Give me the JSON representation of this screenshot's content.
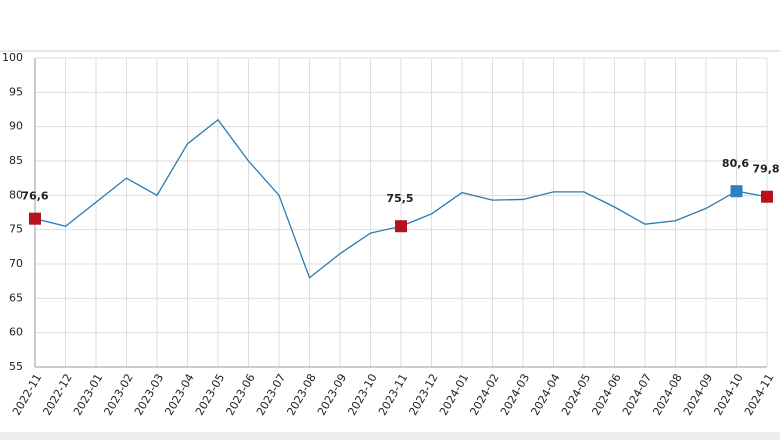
{
  "chart_data": {
    "type": "line",
    "categories": [
      "2022-11",
      "2022-12",
      "2023-01",
      "2023-02",
      "2023-03",
      "2023-04",
      "2023-05",
      "2023-06",
      "2023-07",
      "2023-08",
      "2023-09",
      "2023-10",
      "2023-11",
      "2023-12",
      "2024-01",
      "2024-02",
      "2024-03",
      "2024-04",
      "2024-05",
      "2024-06",
      "2024-07",
      "2024-08",
      "2024-09",
      "2024-10",
      "2024-11"
    ],
    "values": [
      76.6,
      75.5,
      79,
      82.5,
      80,
      87.5,
      91,
      85,
      80,
      68,
      71.5,
      74.5,
      75.5,
      77.3,
      80.4,
      79.3,
      79.4,
      80.5,
      80.5,
      78.3,
      75.8,
      76.3,
      78.1,
      80.6,
      79.8
    ],
    "value_labels": [
      "76,6",
      null,
      null,
      null,
      null,
      null,
      null,
      null,
      null,
      null,
      null,
      null,
      "75,5",
      null,
      null,
      null,
      null,
      null,
      null,
      null,
      null,
      null,
      null,
      "80,6",
      "79,8"
    ],
    "marker_colors": [
      "#b5121b",
      null,
      null,
      null,
      null,
      null,
      null,
      null,
      null,
      null,
      null,
      null,
      "#b5121b",
      null,
      null,
      null,
      null,
      null,
      null,
      null,
      null,
      null,
      null,
      "#2f7fc1",
      "#b5121b"
    ],
    "color": "#2b7bb0",
    "ylim": [
      55,
      100
    ],
    "yticks": [
      55,
      60,
      65,
      70,
      75,
      80,
      85,
      90,
      95,
      100
    ],
    "grid": true
  }
}
